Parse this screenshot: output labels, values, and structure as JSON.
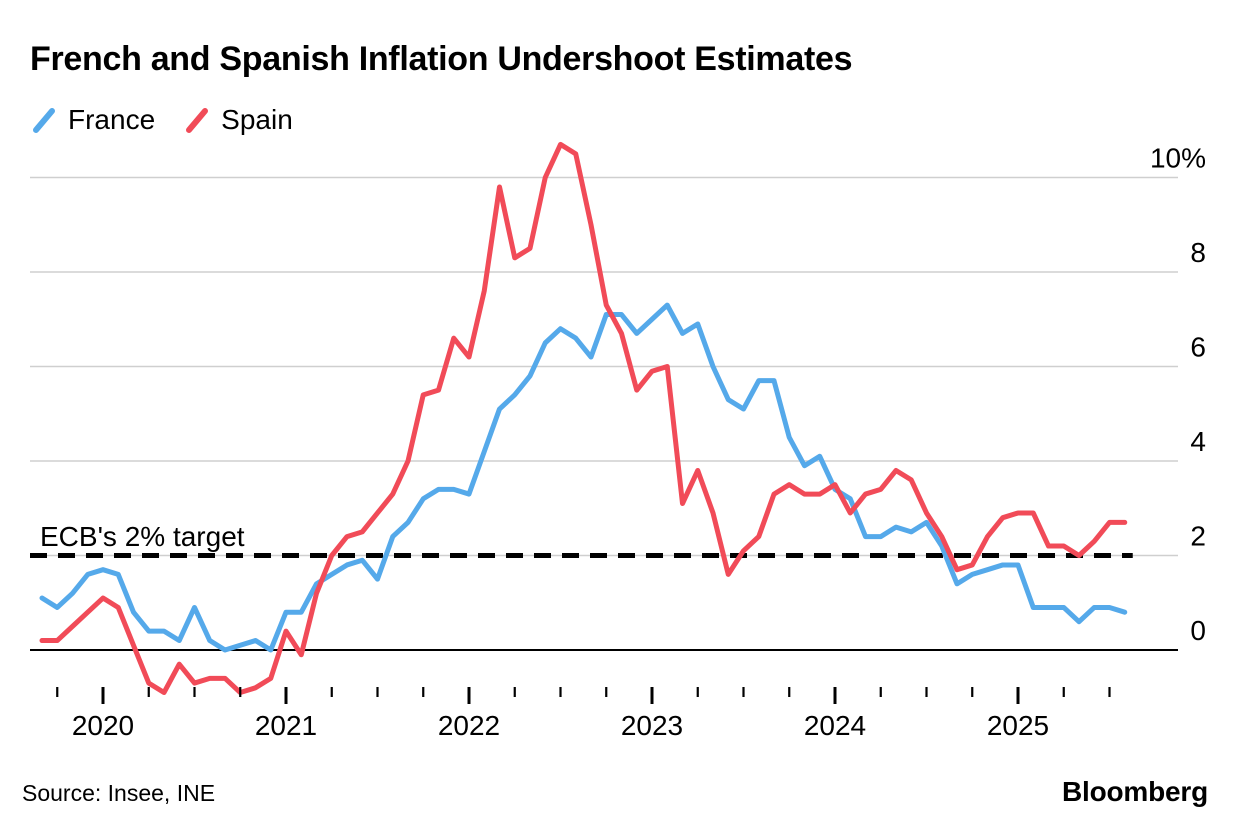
{
  "header": {
    "title": "French and Spanish Inflation Undershoot Estimates"
  },
  "footer": {
    "source": "Source: Insee, INE",
    "brand": "Bloomberg"
  },
  "colors": {
    "france_blue": "#55A9EA",
    "spain_red": "#F14B58",
    "gridline_gray": "#CFCFCF",
    "axis_black": "#000000"
  },
  "chart_data": {
    "type": "line",
    "title": "French and Spanish Inflation Undershoot Estimates",
    "frequency": "monthly",
    "x_start": "2019-09",
    "x_end": "2025-08",
    "x_tick_years": [
      "2020",
      "2021",
      "2022",
      "2023",
      "2024",
      "2025"
    ],
    "y_ticks": [
      0,
      2,
      4,
      6,
      8,
      10
    ],
    "y_tick_labels": [
      "0",
      "2",
      "4",
      "6",
      "8",
      "10%"
    ],
    "ylim": [
      -1.3,
      11.0
    ],
    "grid": "horizontal",
    "legend_position": "top-left",
    "reference_line": {
      "label": "ECB's 2% target",
      "value": 2,
      "style": "dashed",
      "color": "#000000"
    },
    "series": [
      {
        "name": "France",
        "color": "#55A9EA",
        "values": [
          1.1,
          0.9,
          1.2,
          1.6,
          1.7,
          1.6,
          0.8,
          0.4,
          0.4,
          0.2,
          0.9,
          0.2,
          0.0,
          0.1,
          0.2,
          0.0,
          0.8,
          0.8,
          1.4,
          1.6,
          1.8,
          1.9,
          1.5,
          2.4,
          2.7,
          3.2,
          3.4,
          3.4,
          3.3,
          4.2,
          5.1,
          5.4,
          5.8,
          6.5,
          6.8,
          6.6,
          6.2,
          7.1,
          7.1,
          6.7,
          7.0,
          7.3,
          6.7,
          6.9,
          6.0,
          5.3,
          5.1,
          5.7,
          5.7,
          4.5,
          3.9,
          4.1,
          3.4,
          3.2,
          2.4,
          2.4,
          2.6,
          2.5,
          2.7,
          2.2,
          1.4,
          1.6,
          1.7,
          1.8,
          1.8,
          0.9,
          0.9,
          0.9,
          0.6,
          0.9,
          0.9,
          0.8
        ]
      },
      {
        "name": "Spain",
        "color": "#F14B58",
        "values": [
          0.2,
          0.2,
          0.5,
          0.8,
          1.1,
          0.9,
          0.1,
          -0.7,
          -0.9,
          -0.3,
          -0.7,
          -0.6,
          -0.6,
          -0.9,
          -0.8,
          -0.6,
          0.4,
          -0.1,
          1.2,
          2.0,
          2.4,
          2.5,
          2.9,
          3.3,
          4.0,
          5.4,
          5.5,
          6.6,
          6.2,
          7.6,
          9.8,
          8.3,
          8.5,
          10.0,
          10.7,
          10.5,
          9.0,
          7.3,
          6.7,
          5.5,
          5.9,
          6.0,
          3.1,
          3.8,
          2.9,
          1.6,
          2.1,
          2.4,
          3.3,
          3.5,
          3.3,
          3.3,
          3.5,
          2.9,
          3.3,
          3.4,
          3.8,
          3.6,
          2.9,
          2.4,
          1.7,
          1.8,
          2.4,
          2.8,
          2.9,
          2.9,
          2.2,
          2.2,
          2.0,
          2.3,
          2.7,
          2.7
        ]
      }
    ]
  }
}
